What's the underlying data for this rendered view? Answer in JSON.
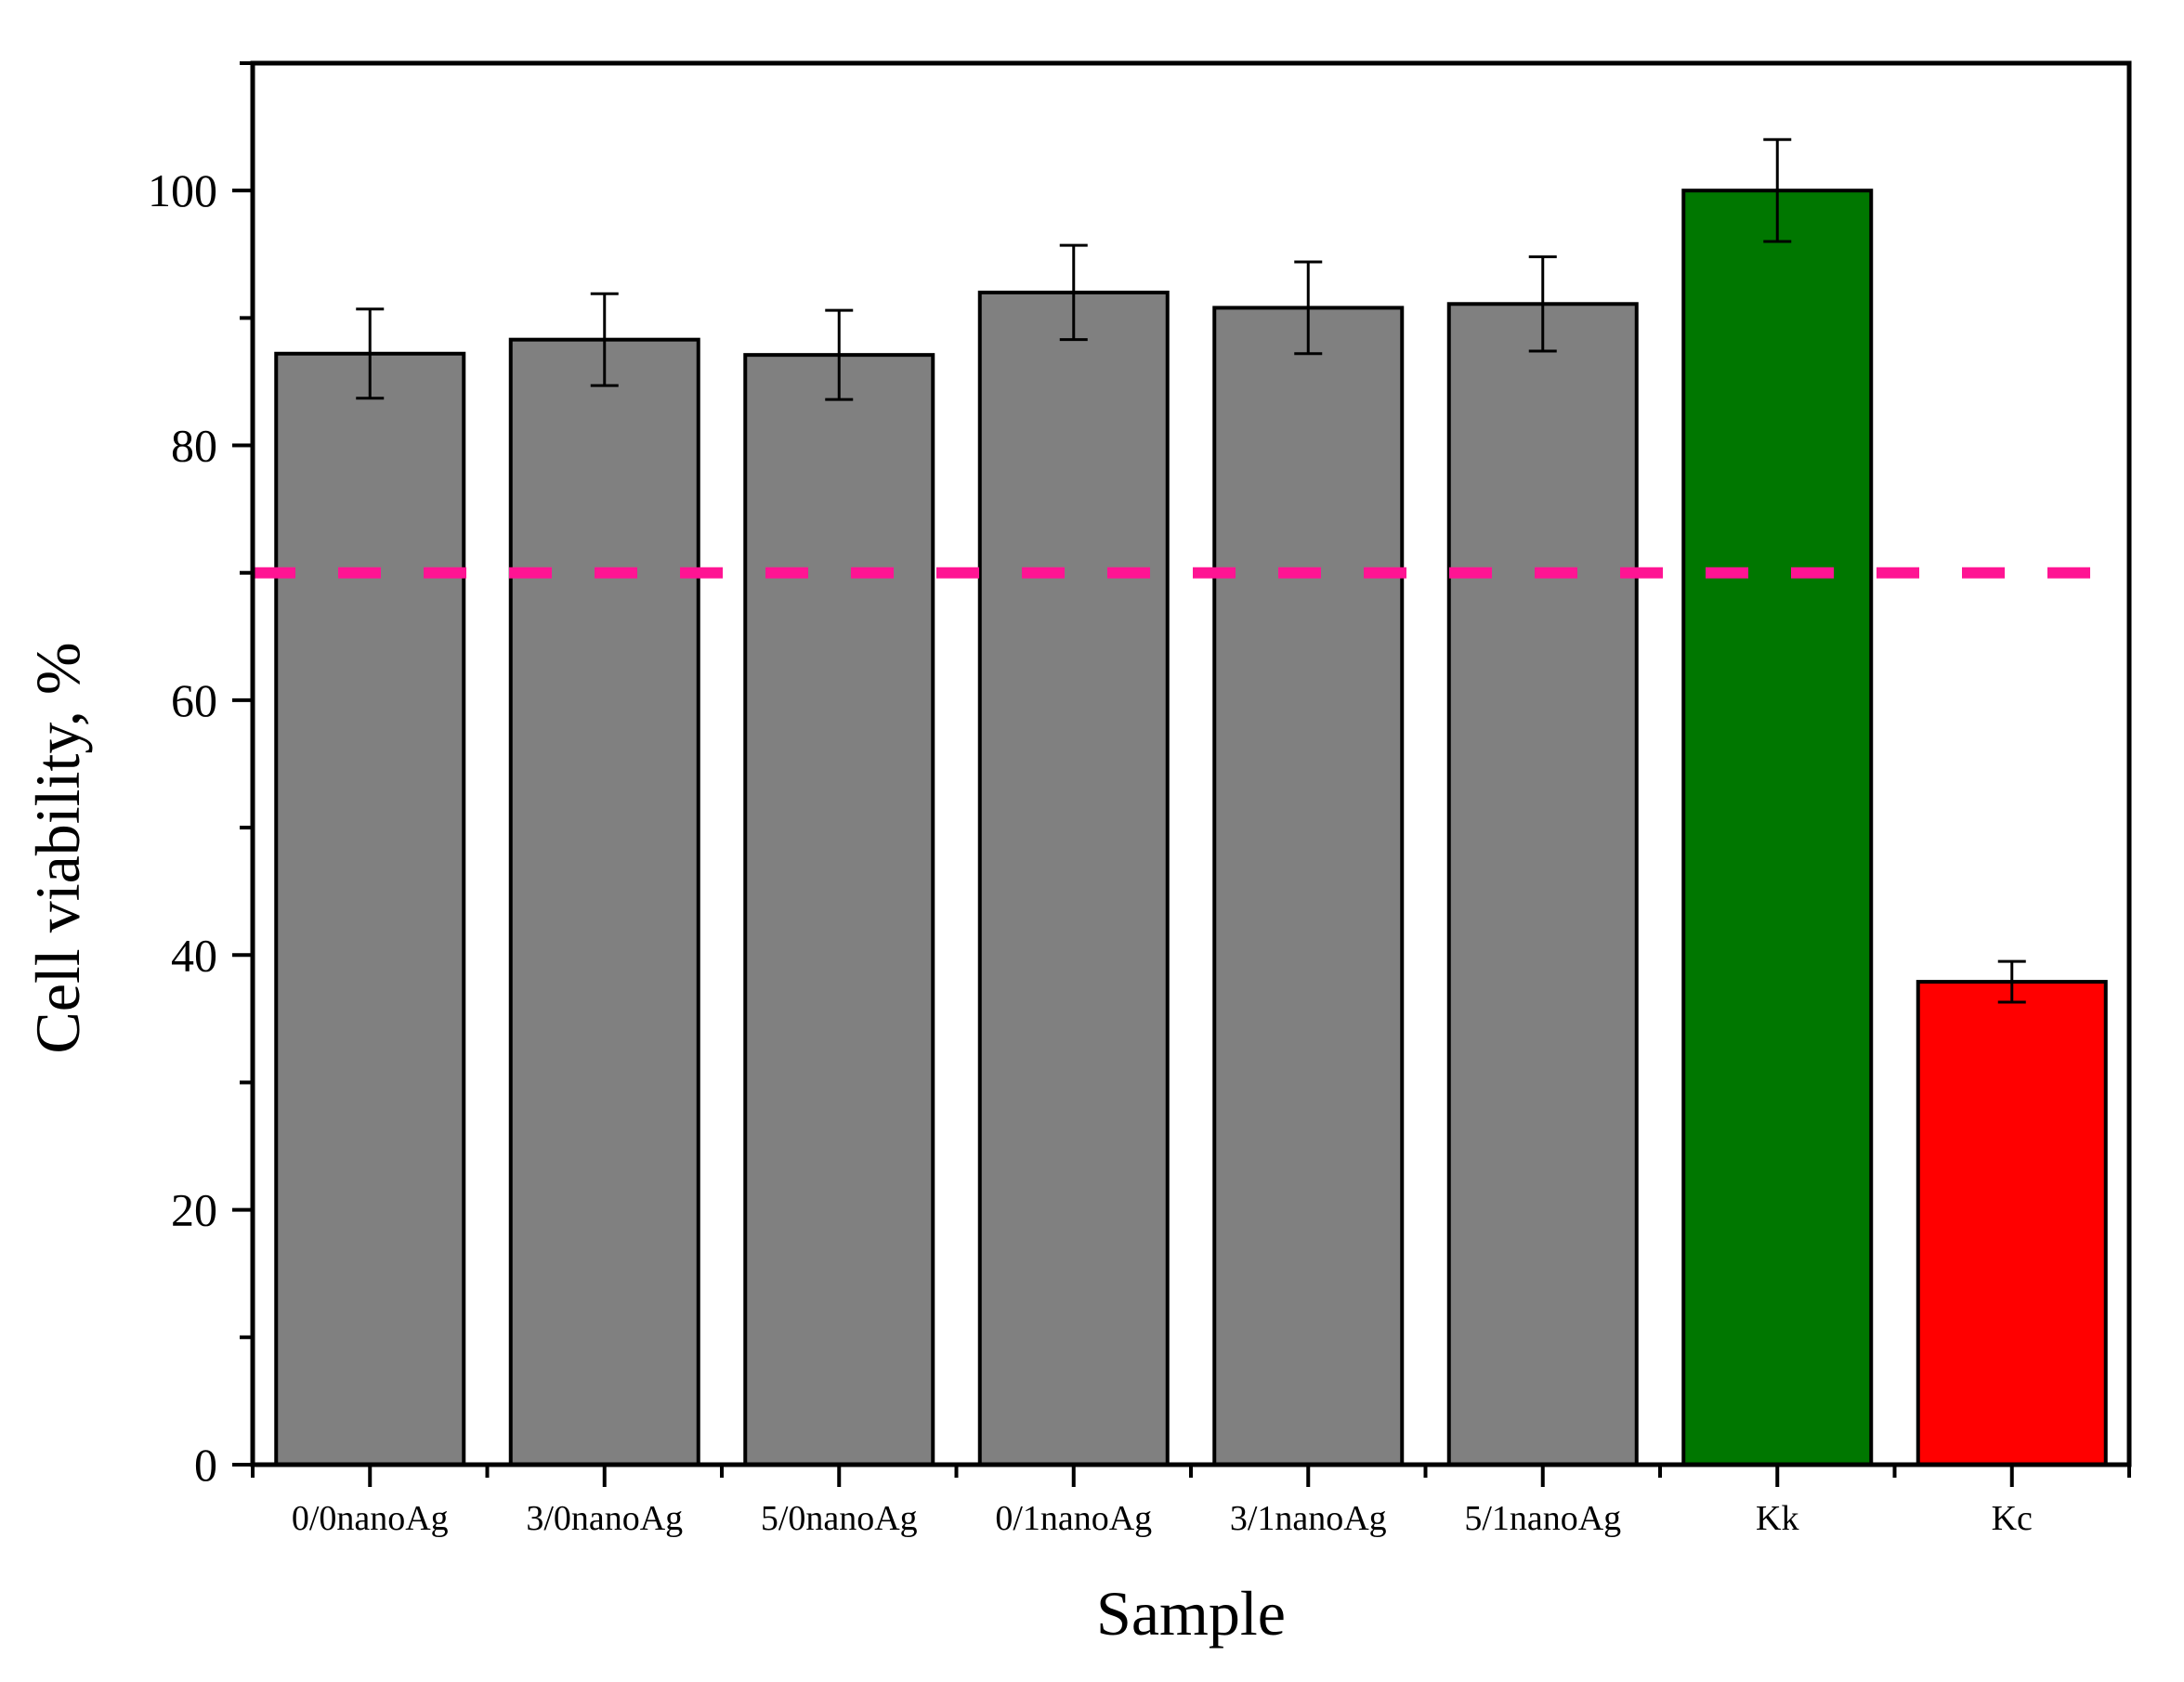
{
  "chart_data": {
    "type": "bar",
    "title": "",
    "xlabel": "Sample",
    "ylabel": "Cell viability, %",
    "categories": [
      "0/0nanoAg",
      "3/0nanoAg",
      "5/0nanoAg",
      "0/1nanoAg",
      "3/1nanoAg",
      "5/1nanoAg",
      "Kk",
      "Kc"
    ],
    "values": [
      87.2,
      88.3,
      87.1,
      92.0,
      90.8,
      91.1,
      100.0,
      37.9
    ],
    "errors": [
      3.5,
      3.6,
      3.5,
      3.7,
      3.6,
      3.7,
      4.0,
      1.6
    ],
    "bar_colors": [
      "#808080",
      "#808080",
      "#808080",
      "#808080",
      "#808080",
      "#808080",
      "#007700",
      "#ff0000"
    ],
    "ylim": [
      0,
      110
    ],
    "yticks": [
      0,
      20,
      40,
      60,
      80,
      100
    ],
    "y_minor_step": 10,
    "threshold": {
      "value": 70,
      "color": "#ff1493",
      "style": "dashed"
    },
    "grid": false,
    "legend": "none"
  }
}
